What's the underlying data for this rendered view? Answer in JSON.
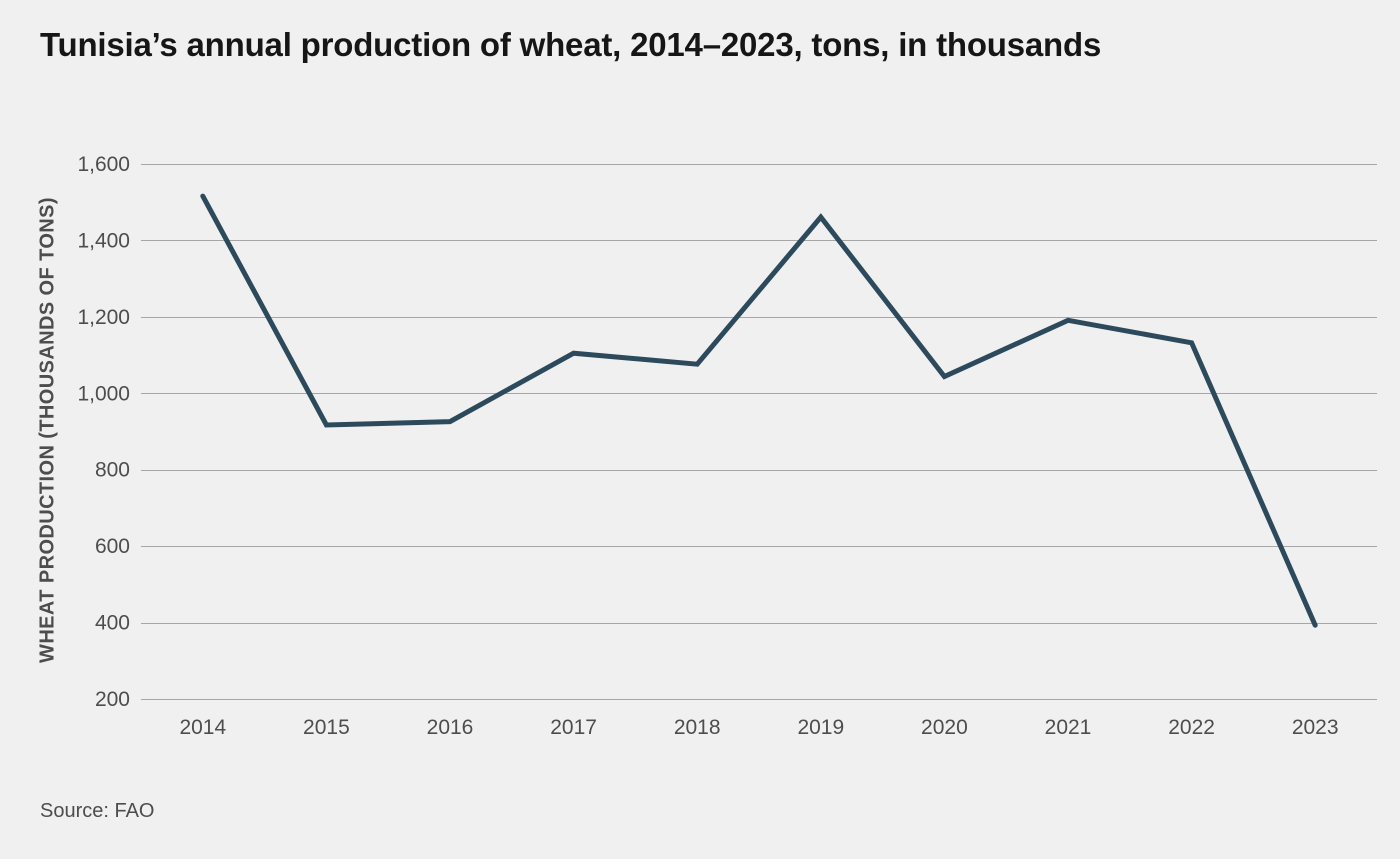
{
  "window": {
    "background_color": "#f0f0f0"
  },
  "header": {
    "title": "Tunisia’s annual production of wheat, 2014–2023, tons, in thousands"
  },
  "footer": {
    "source": "Source: FAO"
  },
  "chart_data": {
    "type": "line",
    "title": "Tunisia’s annual production of wheat, 2014–2023, tons, in thousands",
    "categories": [
      "2014",
      "2015",
      "2016",
      "2017",
      "2018",
      "2019",
      "2020",
      "2021",
      "2022",
      "2023"
    ],
    "series": [
      {
        "name": "Wheat production",
        "values": [
          1516,
          917,
          926,
          1105,
          1076,
          1461,
          1044,
          1191,
          1132,
          393
        ]
      }
    ],
    "xlabel": "",
    "ylabel": "WHEAT PRODUCTION (THOUSANDS OF TONS)",
    "ylim": [
      200,
      1600
    ],
    "yticks": [
      200,
      400,
      600,
      800,
      1000,
      1200,
      1400,
      1600
    ],
    "ytick_labels": [
      "200",
      "400",
      "600",
      "800",
      "1,000",
      "1,200",
      "1,400",
      "1,600"
    ],
    "grid": "horizontal",
    "legend_position": "none",
    "colors": {
      "line": "#2c4a5c",
      "gridline": "#a6a6a6",
      "axis_text": "#4d4d4d",
      "title_text": "#161616",
      "background": "#f0f0f0"
    }
  }
}
